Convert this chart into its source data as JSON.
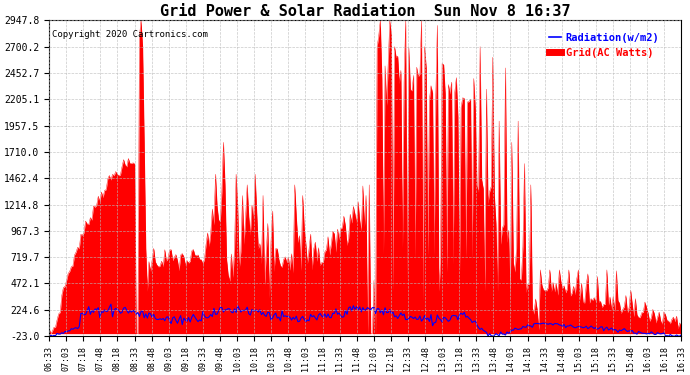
{
  "title": "Grid Power & Solar Radiation  Sun Nov 8 16:37",
  "copyright": "Copyright 2020 Cartronics.com",
  "legend_radiation": "Radiation(w/m2)",
  "legend_grid": "Grid(AC Watts)",
  "radiation_color": "#0000FF",
  "grid_color": "#FF0000",
  "background_color": "#FFFFFF",
  "plot_bg_color": "#FFFFFF",
  "yticks": [
    -23.0,
    224.6,
    472.1,
    719.7,
    967.3,
    1214.8,
    1462.4,
    1710.0,
    1957.5,
    2205.1,
    2452.7,
    2700.2,
    2947.8
  ],
  "ymin": -23.0,
  "ymax": 2947.8,
  "tick_labels": [
    "06:33",
    "07:03",
    "07:18",
    "07:48",
    "08:18",
    "08:33",
    "08:48",
    "09:03",
    "09:18",
    "09:33",
    "09:48",
    "10:03",
    "10:18",
    "10:33",
    "10:48",
    "11:03",
    "11:18",
    "11:33",
    "11:48",
    "12:03",
    "12:18",
    "12:33",
    "12:48",
    "13:03",
    "13:18",
    "13:33",
    "13:48",
    "14:03",
    "14:18",
    "14:33",
    "14:48",
    "15:03",
    "15:18",
    "15:33",
    "15:48",
    "16:03",
    "16:18",
    "16:33"
  ]
}
